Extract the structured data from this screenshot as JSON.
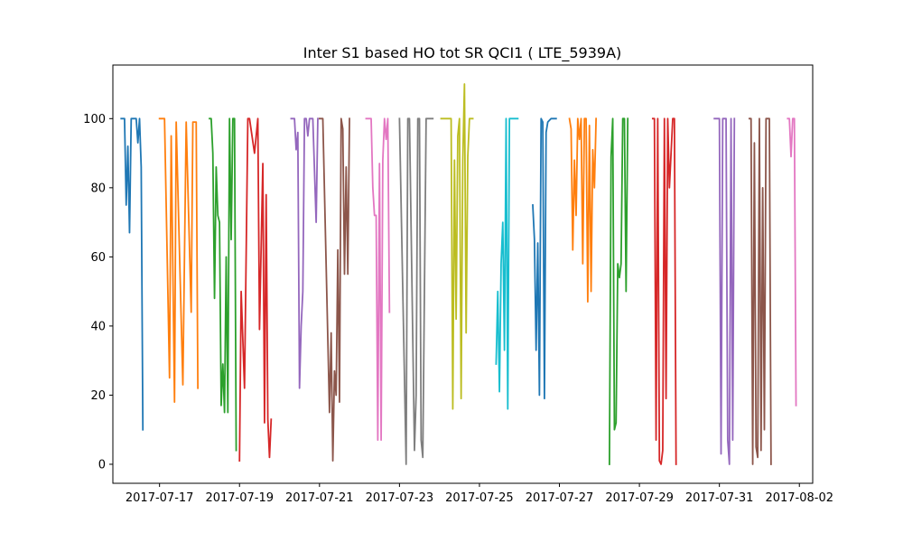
{
  "chart_data": {
    "type": "line",
    "title": "Inter S1 based HO tot SR QCI1 ( LTE_5939A)",
    "xlabel": "",
    "ylabel": "",
    "x_type": "date",
    "xlim": [
      "2016-07-15 20:00",
      "2017-08-02 08:00"
    ],
    "ylim": [
      -5.5,
      115.5
    ],
    "x_ticks": [
      "2017-07-17",
      "2017-07-19",
      "2017-07-21",
      "2017-07-23",
      "2017-07-25",
      "2017-07-27",
      "2017-07-29",
      "2017-07-31",
      "2017-08-02"
    ],
    "y_ticks": [
      0,
      20,
      40,
      60,
      80,
      100
    ],
    "grid": false,
    "legend": "none",
    "series": [
      {
        "color": "#1f77b4",
        "points": [
          [
            "2017-07-16 01:00",
            100
          ],
          [
            "2017-07-16 03:00",
            100
          ],
          [
            "2017-07-16 04:00",
            75
          ],
          [
            "2017-07-16 05:00",
            92
          ],
          [
            "2017-07-16 06:00",
            67
          ],
          [
            "2017-07-16 07:00",
            100
          ],
          [
            "2017-07-16 10:00",
            100
          ],
          [
            "2017-07-16 11:00",
            93
          ],
          [
            "2017-07-16 12:00",
            100
          ],
          [
            "2017-07-16 13:00",
            86
          ],
          [
            "2017-07-16 14:00",
            10
          ]
        ]
      },
      {
        "color": "#ff7f0e",
        "points": [
          [
            "2017-07-17 00:00",
            100
          ],
          [
            "2017-07-17 03:00",
            100
          ],
          [
            "2017-07-17 06:00",
            25
          ],
          [
            "2017-07-17 07:00",
            95
          ],
          [
            "2017-07-17 09:00",
            18
          ],
          [
            "2017-07-17 10:00",
            99
          ],
          [
            "2017-07-17 14:00",
            23
          ],
          [
            "2017-07-17 16:00",
            99
          ],
          [
            "2017-07-17 19:00",
            44
          ],
          [
            "2017-07-17 20:00",
            99
          ],
          [
            "2017-07-17 22:00",
            99
          ],
          [
            "2017-07-17 23:00",
            22
          ]
        ]
      },
      {
        "color": "#2ca02c",
        "points": [
          [
            "2017-07-18 06:00",
            100
          ],
          [
            "2017-07-18 07:00",
            100
          ],
          [
            "2017-07-18 08:00",
            90
          ],
          [
            "2017-07-18 09:00",
            48
          ],
          [
            "2017-07-18 10:00",
            86
          ],
          [
            "2017-07-18 11:00",
            72
          ],
          [
            "2017-07-18 12:00",
            70
          ],
          [
            "2017-07-18 13:00",
            17
          ],
          [
            "2017-07-18 14:00",
            29
          ],
          [
            "2017-07-18 15:00",
            15
          ],
          [
            "2017-07-18 16:00",
            60
          ],
          [
            "2017-07-18 17:00",
            15
          ],
          [
            "2017-07-18 18:00",
            100
          ],
          [
            "2017-07-18 19:00",
            65
          ],
          [
            "2017-07-18 20:00",
            100
          ],
          [
            "2017-07-18 21:00",
            100
          ],
          [
            "2017-07-18 22:00",
            4
          ]
        ]
      },
      {
        "color": "#d62728",
        "points": [
          [
            "2017-07-19 00:00",
            1
          ],
          [
            "2017-07-19 01:00",
            50
          ],
          [
            "2017-07-19 03:00",
            22
          ],
          [
            "2017-07-19 05:00",
            100
          ],
          [
            "2017-07-19 06:00",
            100
          ],
          [
            "2017-07-19 09:00",
            90
          ],
          [
            "2017-07-19 11:00",
            100
          ],
          [
            "2017-07-19 12:00",
            39
          ],
          [
            "2017-07-19 14:00",
            87
          ],
          [
            "2017-07-19 15:00",
            12
          ],
          [
            "2017-07-19 16:00",
            78
          ],
          [
            "2017-07-19 17:00",
            13
          ],
          [
            "2017-07-19 18:00",
            2
          ],
          [
            "2017-07-19 19:00",
            13
          ]
        ]
      },
      {
        "color": "#9467bd",
        "points": [
          [
            "2017-07-20 07:00",
            100
          ],
          [
            "2017-07-20 09:00",
            100
          ],
          [
            "2017-07-20 10:00",
            91
          ],
          [
            "2017-07-20 11:00",
            96
          ],
          [
            "2017-07-20 12:00",
            22
          ],
          [
            "2017-07-20 13:00",
            40
          ],
          [
            "2017-07-20 14:00",
            50
          ],
          [
            "2017-07-20 15:00",
            100
          ],
          [
            "2017-07-20 16:00",
            100
          ],
          [
            "2017-07-20 17:00",
            95
          ],
          [
            "2017-07-20 18:00",
            100
          ],
          [
            "2017-07-20 20:00",
            100
          ],
          [
            "2017-07-20 22:00",
            70
          ],
          [
            "2017-07-20 23:00",
            100
          ]
        ]
      },
      {
        "color": "#8c564b",
        "points": [
          [
            "2017-07-21 00:00",
            100
          ],
          [
            "2017-07-21 01:00",
            100
          ],
          [
            "2017-07-21 02:00",
            100
          ],
          [
            "2017-07-21 06:00",
            15
          ],
          [
            "2017-07-21 07:00",
            38
          ],
          [
            "2017-07-21 08:00",
            1
          ],
          [
            "2017-07-21 09:00",
            27
          ],
          [
            "2017-07-21 10:00",
            20
          ],
          [
            "2017-07-21 11:00",
            62
          ],
          [
            "2017-07-21 12:00",
            18
          ],
          [
            "2017-07-21 13:00",
            100
          ],
          [
            "2017-07-21 14:00",
            97
          ],
          [
            "2017-07-21 15:00",
            55
          ],
          [
            "2017-07-21 16:00",
            86
          ],
          [
            "2017-07-21 17:00",
            55
          ],
          [
            "2017-07-21 18:00",
            100
          ]
        ]
      },
      {
        "color": "#e377c2",
        "points": [
          [
            "2017-07-22 04:00",
            100
          ],
          [
            "2017-07-22 07:00",
            100
          ],
          [
            "2017-07-22 08:00",
            80
          ],
          [
            "2017-07-22 09:00",
            72
          ],
          [
            "2017-07-22 10:00",
            72
          ],
          [
            "2017-07-22 11:00",
            7
          ],
          [
            "2017-07-22 12:00",
            87
          ],
          [
            "2017-07-22 13:00",
            7
          ],
          [
            "2017-07-22 14:00",
            88
          ],
          [
            "2017-07-22 15:00",
            100
          ],
          [
            "2017-07-22 16:00",
            94
          ],
          [
            "2017-07-22 17:00",
            100
          ],
          [
            "2017-07-22 18:00",
            44
          ]
        ]
      },
      {
        "color": "#7f7f7f",
        "points": [
          [
            "2017-07-23 00:00",
            100
          ],
          [
            "2017-07-23 04:00",
            0
          ],
          [
            "2017-07-23 05:00",
            100
          ],
          [
            "2017-07-23 06:00",
            100
          ],
          [
            "2017-07-23 09:00",
            4
          ],
          [
            "2017-07-23 10:00",
            20
          ],
          [
            "2017-07-23 11:00",
            100
          ],
          [
            "2017-07-23 12:00",
            100
          ],
          [
            "2017-07-23 13:00",
            7
          ],
          [
            "2017-07-23 14:00",
            2
          ],
          [
            "2017-07-23 16:00",
            100
          ],
          [
            "2017-07-23 20:00",
            100
          ]
        ]
      },
      {
        "color": "#bcbd22",
        "points": [
          [
            "2017-07-24 01:00",
            100
          ],
          [
            "2017-07-24 03:00",
            100
          ],
          [
            "2017-07-24 05:00",
            100
          ],
          [
            "2017-07-24 07:00",
            100
          ],
          [
            "2017-07-24 08:00",
            16
          ],
          [
            "2017-07-24 09:00",
            88
          ],
          [
            "2017-07-24 10:00",
            42
          ],
          [
            "2017-07-24 11:00",
            95
          ],
          [
            "2017-07-24 12:00",
            100
          ],
          [
            "2017-07-24 13:00",
            19
          ],
          [
            "2017-07-24 14:00",
            88
          ],
          [
            "2017-07-24 15:00",
            110
          ],
          [
            "2017-07-24 16:00",
            38
          ],
          [
            "2017-07-24 17:00",
            89
          ],
          [
            "2017-07-24 18:00",
            100
          ],
          [
            "2017-07-24 20:00",
            100
          ]
        ]
      },
      {
        "color": "#17becf",
        "points": [
          [
            "2017-07-25 10:00",
            29
          ],
          [
            "2017-07-25 11:00",
            50
          ],
          [
            "2017-07-25 12:00",
            21
          ],
          [
            "2017-07-25 13:00",
            58
          ],
          [
            "2017-07-25 14:00",
            70
          ],
          [
            "2017-07-25 15:00",
            33
          ],
          [
            "2017-07-25 16:00",
            100
          ],
          [
            "2017-07-25 17:00",
            16
          ],
          [
            "2017-07-25 18:00",
            100
          ],
          [
            "2017-07-25 20:00",
            100
          ],
          [
            "2017-07-25 23:00",
            100
          ]
        ]
      },
      {
        "color": "#1f77b4",
        "points": [
          [
            "2017-07-26 08:00",
            75
          ],
          [
            "2017-07-26 09:00",
            65
          ],
          [
            "2017-07-26 10:00",
            33
          ],
          [
            "2017-07-26 11:00",
            64
          ],
          [
            "2017-07-26 12:00",
            20
          ],
          [
            "2017-07-26 13:00",
            100
          ],
          [
            "2017-07-26 14:00",
            99
          ],
          [
            "2017-07-26 15:00",
            19
          ],
          [
            "2017-07-26 16:00",
            96
          ],
          [
            "2017-07-26 17:00",
            99
          ],
          [
            "2017-07-26 19:00",
            100
          ],
          [
            "2017-07-26 22:00",
            100
          ]
        ]
      },
      {
        "color": "#ff7f0e",
        "points": [
          [
            "2017-07-27 06:00",
            100
          ],
          [
            "2017-07-27 07:00",
            97
          ],
          [
            "2017-07-27 08:00",
            62
          ],
          [
            "2017-07-27 09:00",
            88
          ],
          [
            "2017-07-27 10:00",
            72
          ],
          [
            "2017-07-27 11:00",
            100
          ],
          [
            "2017-07-27 12:00",
            94
          ],
          [
            "2017-07-27 13:00",
            100
          ],
          [
            "2017-07-27 14:00",
            58
          ],
          [
            "2017-07-27 15:00",
            100
          ],
          [
            "2017-07-27 16:00",
            100
          ],
          [
            "2017-07-27 17:00",
            47
          ],
          [
            "2017-07-27 18:00",
            98
          ],
          [
            "2017-07-27 19:00",
            50
          ],
          [
            "2017-07-27 20:00",
            91
          ],
          [
            "2017-07-27 21:00",
            80
          ],
          [
            "2017-07-27 22:00",
            100
          ]
        ]
      },
      {
        "color": "#2ca02c",
        "points": [
          [
            "2017-07-28 06:00",
            0
          ],
          [
            "2017-07-28 07:00",
            89
          ],
          [
            "2017-07-28 08:00",
            100
          ],
          [
            "2017-07-28 09:00",
            10
          ],
          [
            "2017-07-28 10:00",
            12
          ],
          [
            "2017-07-28 11:00",
            58
          ],
          [
            "2017-07-28 12:00",
            54
          ],
          [
            "2017-07-28 13:00",
            58
          ],
          [
            "2017-07-28 14:00",
            100
          ],
          [
            "2017-07-28 15:00",
            100
          ],
          [
            "2017-07-28 16:00",
            50
          ],
          [
            "2017-07-28 17:00",
            100
          ]
        ]
      },
      {
        "color": "#d62728",
        "points": [
          [
            "2017-07-29 08:00",
            100
          ],
          [
            "2017-07-29 09:00",
            100
          ],
          [
            "2017-07-29 10:00",
            7
          ],
          [
            "2017-07-29 11:00",
            100
          ],
          [
            "2017-07-29 12:00",
            1
          ],
          [
            "2017-07-29 13:00",
            0
          ],
          [
            "2017-07-29 14:00",
            4
          ],
          [
            "2017-07-29 15:00",
            100
          ],
          [
            "2017-07-29 16:00",
            19
          ],
          [
            "2017-07-29 17:00",
            100
          ],
          [
            "2017-07-29 18:00",
            80
          ],
          [
            "2017-07-29 20:00",
            100
          ],
          [
            "2017-07-29 21:00",
            100
          ],
          [
            "2017-07-29 22:00",
            0
          ]
        ]
      },
      {
        "color": "#9467bd",
        "points": [
          [
            "2017-07-30 21:00",
            100
          ],
          [
            "2017-07-30 22:00",
            100
          ],
          [
            "2017-07-31 00:00",
            100
          ],
          [
            "2017-07-31 01:00",
            3
          ],
          [
            "2017-07-31 02:00",
            100
          ],
          [
            "2017-07-31 03:00",
            100
          ],
          [
            "2017-07-31 04:00",
            100
          ],
          [
            "2017-07-31 05:00",
            7
          ],
          [
            "2017-07-31 06:00",
            0
          ],
          [
            "2017-07-31 07:00",
            100
          ],
          [
            "2017-07-31 08:00",
            7
          ],
          [
            "2017-07-31 09:00",
            100
          ]
        ]
      },
      {
        "color": "#8c564b",
        "points": [
          [
            "2017-07-31 18:00",
            100
          ],
          [
            "2017-07-31 19:00",
            100
          ],
          [
            "2017-07-31 20:00",
            0
          ],
          [
            "2017-07-31 21:00",
            93
          ],
          [
            "2017-07-31 22:00",
            5
          ],
          [
            "2017-07-31 23:00",
            2
          ],
          [
            "2017-08-01 00:00",
            100
          ],
          [
            "2017-08-01 01:00",
            4
          ],
          [
            "2017-08-01 02:00",
            80
          ],
          [
            "2017-08-01 03:00",
            10
          ],
          [
            "2017-08-01 04:00",
            100
          ],
          [
            "2017-08-01 05:00",
            100
          ],
          [
            "2017-08-01 06:00",
            100
          ],
          [
            "2017-08-01 07:00",
            0
          ]
        ]
      },
      {
        "color": "#e377c2",
        "points": [
          [
            "2017-08-01 17:00",
            100
          ],
          [
            "2017-08-01 18:00",
            100
          ],
          [
            "2017-08-01 19:00",
            89
          ],
          [
            "2017-08-01 20:00",
            100
          ],
          [
            "2017-08-01 21:00",
            100
          ],
          [
            "2017-08-01 22:00",
            17
          ]
        ]
      }
    ]
  }
}
